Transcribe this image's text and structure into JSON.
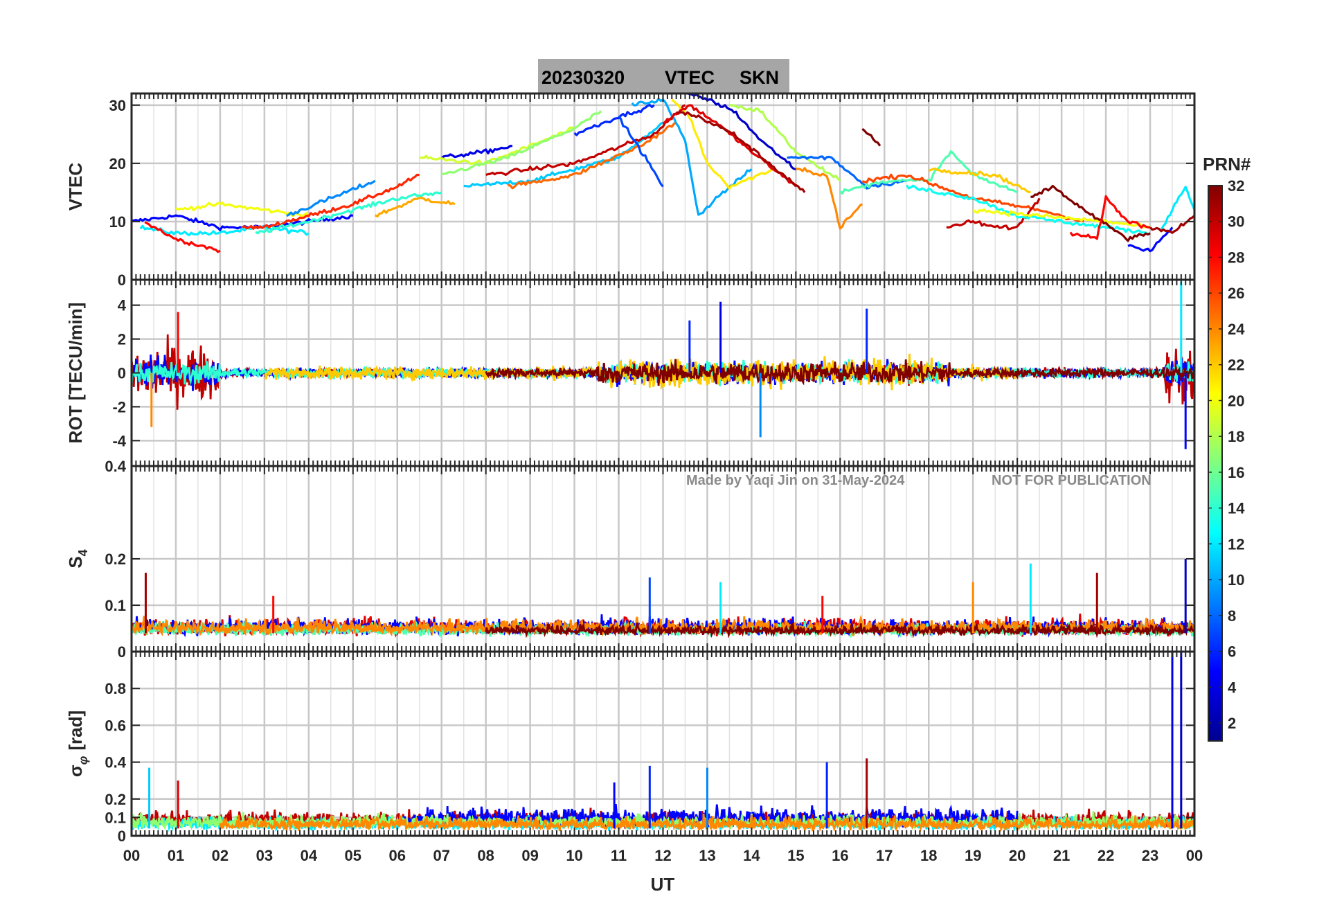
{
  "chart_data": {
    "type": "line",
    "title": "20230320    VTEC  SKN",
    "title_parts": {
      "date": "20230320",
      "quantity": "VTEC",
      "station": "SKN"
    },
    "xlabel": "UT",
    "x_ticks": [
      "00",
      "01",
      "02",
      "03",
      "04",
      "05",
      "06",
      "07",
      "08",
      "09",
      "10",
      "11",
      "12",
      "13",
      "14",
      "15",
      "16",
      "17",
      "18",
      "19",
      "20",
      "21",
      "22",
      "23",
      "00"
    ],
    "xlim_hours": [
      0,
      24
    ],
    "colorbar": {
      "label": "PRN#",
      "range": [
        1,
        32
      ],
      "ticks": [
        "2",
        "4",
        "6",
        "8",
        "10",
        "12",
        "14",
        "16",
        "18",
        "20",
        "22",
        "24",
        "26",
        "28",
        "30",
        "32"
      ],
      "colormap": "jet",
      "stops": [
        "#00008f",
        "#0000ff",
        "#0080ff",
        "#00ffff",
        "#80ff80",
        "#ffff00",
        "#ff8000",
        "#ff0000",
        "#800000"
      ]
    },
    "watermark": {
      "made_by": "Made by Yaqi Jin on 31-May-2024",
      "notice": "NOT FOR PUBLICATION"
    },
    "panels": [
      {
        "id": "vtec",
        "ylabel": "VTEC",
        "ylim": [
          0,
          32
        ],
        "yticks": [
          "0",
          "10",
          "20",
          "30"
        ],
        "ytick_values": [
          0,
          10,
          20,
          30
        ],
        "series": [
          {
            "prn": 5,
            "x": [
              0,
              1,
              2,
              3,
              4,
              5
            ],
            "y": [
              10,
              11,
              9,
              9,
              10,
              11
            ]
          },
          {
            "prn": 12,
            "x": [
              0.2,
              1,
              2,
              3,
              4
            ],
            "y": [
              9,
              8,
              8,
              9,
              8
            ]
          },
          {
            "prn": 28,
            "x": [
              0.3,
              1,
              1.5,
              2
            ],
            "y": [
              10,
              7,
              6,
              5
            ]
          },
          {
            "prn": 20,
            "x": [
              1,
              2,
              3,
              4
            ],
            "y": [
              12,
              13,
              12,
              11
            ]
          },
          {
            "prn": 27,
            "x": [
              2.5,
              3,
              4,
              5,
              6,
              6.5
            ],
            "y": [
              9,
              9,
              11,
              13,
              16,
              18
            ]
          },
          {
            "prn": 14,
            "x": [
              2.8,
              4,
              5,
              6,
              7
            ],
            "y": [
              8,
              10,
              12,
              14,
              15
            ]
          },
          {
            "prn": 9,
            "x": [
              3.5,
              4.5,
              5.5
            ],
            "y": [
              11,
              14,
              17
            ]
          },
          {
            "prn": 23,
            "x": [
              5.5,
              6.5,
              7.3
            ],
            "y": [
              11,
              14,
              13
            ]
          },
          {
            "prn": 4,
            "x": [
              7,
              8,
              8.6
            ],
            "y": [
              21,
              22,
              23
            ]
          },
          {
            "prn": 19,
            "x": [
              6.5,
              8,
              9,
              10
            ],
            "y": [
              21,
              20,
              23,
              26
            ]
          },
          {
            "prn": 17,
            "x": [
              7,
              8.5,
              10,
              10.6
            ],
            "y": [
              18,
              21,
              26,
              29
            ]
          },
          {
            "prn": 11,
            "x": [
              7.5,
              9,
              11,
              12
            ],
            "y": [
              16,
              17,
              21,
              27
            ]
          },
          {
            "prn": 25,
            "x": [
              8.5,
              10,
              11.5,
              12.3
            ],
            "y": [
              16,
              18,
              23,
              27
            ]
          },
          {
            "prn": 30,
            "x": [
              8,
              10,
              11.8,
              12.5
            ],
            "y": [
              18,
              20,
              25,
              30
            ]
          },
          {
            "prn": 6,
            "x": [
              10,
              11,
              11.8
            ],
            "y": [
              25,
              28,
              30
            ]
          },
          {
            "prn": 7,
            "x": [
              11,
              11.6,
              12
            ],
            "y": [
              28,
              21,
              16
            ]
          },
          {
            "prn": 10,
            "x": [
              11.3,
              12,
              12.5,
              12.8,
              13.2,
              14
            ],
            "y": [
              30,
              31,
              24,
              11,
              14,
              19
            ]
          },
          {
            "prn": 21,
            "x": [
              12.2,
              12.6,
              13,
              13.5,
              14.5
            ],
            "y": [
              31,
              28,
              20,
              16,
              19
            ]
          },
          {
            "prn": 29,
            "x": [
              12,
              12.6,
              13.2,
              14,
              15
            ],
            "y": [
              27,
              30,
              27,
              22,
              16
            ]
          },
          {
            "prn": 31,
            "x": [
              12.3,
              12.8,
              13.6,
              14.4,
              15.2
            ],
            "y": [
              29,
              28,
              25,
              20,
              15
            ]
          },
          {
            "prn": 3,
            "x": [
              12.5,
              13,
              13.6,
              14.2,
              15
            ],
            "y": [
              32,
              31,
              29,
              24,
              19
            ]
          },
          {
            "prn": 18,
            "x": [
              13.5,
              14.2,
              15,
              16
            ],
            "y": [
              30,
              29,
              22,
              17
            ]
          },
          {
            "prn": 24,
            "x": [
              15,
              15.7,
              16,
              16.5
            ],
            "y": [
              19,
              18,
              9,
              13
            ]
          },
          {
            "prn": 8,
            "x": [
              14.8,
              15.8,
              16.6,
              17.5
            ],
            "y": [
              21,
              21,
              16,
              17
            ]
          },
          {
            "prn": 15,
            "x": [
              16,
              17,
              18,
              18.5,
              19,
              20
            ],
            "y": [
              15,
              17,
              17,
              22,
              18,
              15
            ]
          },
          {
            "prn": 26,
            "x": [
              16.5,
              17.5,
              19,
              20.5,
              21.5
            ],
            "y": [
              17,
              18,
              14,
              12,
              10
            ]
          },
          {
            "prn": 32,
            "x": [
              16.5,
              16.9
            ],
            "y": [
              26,
              23
            ]
          },
          {
            "prn": 30,
            "x": [
              18.4,
              19,
              19.5,
              20,
              20.5
            ],
            "y": [
              9,
              10,
              9,
              9,
              14
            ]
          },
          {
            "prn": 22,
            "x": [
              18,
              19.5,
              20.3
            ],
            "y": [
              19,
              18,
              15
            ]
          },
          {
            "prn": 13,
            "x": [
              17.5,
              19,
              20,
              21,
              22,
              23
            ],
            "y": [
              16,
              14,
              11,
              10,
              9,
              8
            ]
          },
          {
            "prn": 20,
            "x": [
              19,
              20.5,
              22,
              23
            ],
            "y": [
              12,
              11,
              10,
              9
            ]
          },
          {
            "prn": 32,
            "x": [
              20.3,
              20.8,
              21.5,
              22.5,
              23
            ],
            "y": [
              14,
              16,
              12,
              7,
              8
            ]
          },
          {
            "prn": 28,
            "x": [
              21.2,
              21.8,
              22,
              22.5,
              23
            ],
            "y": [
              8,
              7,
              14,
              10,
              9
            ]
          },
          {
            "prn": 5,
            "x": [
              22.5,
              23,
              23.5
            ],
            "y": [
              6,
              5,
              9
            ]
          },
          {
            "prn": 12,
            "x": [
              23.2,
              23.8,
              24
            ],
            "y": [
              8,
              16,
              12
            ]
          },
          {
            "prn": 31,
            "x": [
              23,
              23.5,
              24
            ],
            "y": [
              9,
              8,
              11
            ]
          }
        ]
      },
      {
        "id": "rot",
        "ylabel": "ROT [TECU/min]",
        "ylim": [
          -5.5,
          5.5
        ],
        "yticks": [
          "-4",
          "-2",
          "0",
          "2",
          "4"
        ],
        "ytick_values": [
          -4,
          -2,
          0,
          2,
          4
        ],
        "series": [
          {
            "prn": 30,
            "x": [
              0,
              24
            ],
            "baseline": 0,
            "noise_amp": [
              1.6,
              0.5
            ],
            "segments": "full"
          },
          {
            "prn": 5,
            "x": [
              0,
              24
            ],
            "baseline": 0,
            "noise_amp": [
              0.8,
              0.6
            ],
            "segments": "full"
          },
          {
            "prn": 14,
            "x": [
              0,
              24
            ],
            "baseline": 0,
            "noise_amp": [
              0.6,
              0.6
            ],
            "segments": "full"
          },
          {
            "prn": 22,
            "x": [
              3,
              20
            ],
            "baseline": 0,
            "noise_amp": [
              0.3,
              0.8
            ],
            "segments": "full"
          },
          {
            "prn": 32,
            "x": [
              8,
              24
            ],
            "baseline": 0,
            "noise_amp": [
              0.3,
              0.6
            ],
            "segments": "full"
          }
        ],
        "notable_spikes": [
          {
            "x": 1.05,
            "y": 3.6,
            "prn": 28
          },
          {
            "x": 0.45,
            "y": -3.2,
            "prn": 24
          },
          {
            "x": 12.6,
            "y": 3.1,
            "prn": 6
          },
          {
            "x": 13.3,
            "y": 4.2,
            "prn": 4
          },
          {
            "x": 14.2,
            "y": -3.8,
            "prn": 9
          },
          {
            "x": 16.6,
            "y": 3.8,
            "prn": 6
          },
          {
            "x": 23.7,
            "y": 5.4,
            "prn": 12
          },
          {
            "x": 23.8,
            "y": -4.5,
            "prn": 5
          }
        ]
      },
      {
        "id": "s4",
        "ylabel": "S",
        "ylabel_sub": "4",
        "ylim": [
          0,
          0.4
        ],
        "yticks": [
          "0",
          "0.1",
          "0.2",
          "0.4"
        ],
        "ytick_values": [
          0,
          0.1,
          0.2,
          0.4
        ],
        "series": [
          {
            "prn": 29,
            "x": [
              0,
              24
            ],
            "baseline": 0.05,
            "noise_amp": 0.02
          },
          {
            "prn": 5,
            "x": [
              0,
              24
            ],
            "baseline": 0.05,
            "noise_amp": 0.02
          },
          {
            "prn": 15,
            "x": [
              0,
              24
            ],
            "baseline": 0.045,
            "noise_amp": 0.015
          },
          {
            "prn": 24,
            "x": [
              0,
              24
            ],
            "baseline": 0.05,
            "noise_amp": 0.018
          },
          {
            "prn": 32,
            "x": [
              8,
              24
            ],
            "baseline": 0.045,
            "noise_amp": 0.012
          }
        ],
        "notable_spikes": [
          {
            "x": 0.32,
            "y": 0.17,
            "prn": 31
          },
          {
            "x": 3.2,
            "y": 0.12,
            "prn": 28
          },
          {
            "x": 11.7,
            "y": 0.16,
            "prn": 7
          },
          {
            "x": 13.3,
            "y": 0.15,
            "prn": 12
          },
          {
            "x": 15.6,
            "y": 0.12,
            "prn": 28
          },
          {
            "x": 19,
            "y": 0.15,
            "prn": 24
          },
          {
            "x": 20.3,
            "y": 0.19,
            "prn": 12
          },
          {
            "x": 21.8,
            "y": 0.17,
            "prn": 31
          },
          {
            "x": 23.8,
            "y": 0.2,
            "prn": 3
          }
        ]
      },
      {
        "id": "sigma_phi",
        "ylabel": "σ",
        "ylabel_sub": "φ",
        "ylabel_suffix": "[rad]",
        "ylim": [
          0,
          1
        ],
        "yticks": [
          "0",
          "0.1",
          "0.2",
          "0.4",
          "0.6",
          "0.8"
        ],
        "ytick_values": [
          0,
          0.1,
          0.2,
          0.4,
          0.6,
          0.8
        ],
        "series": [
          {
            "prn": 30,
            "x": [
              0,
              24
            ],
            "baseline": 0.08,
            "noise_amp": 0.05
          },
          {
            "prn": 12,
            "x": [
              0,
              24
            ],
            "baseline": 0.06,
            "noise_amp": 0.04
          },
          {
            "prn": 5,
            "x": [
              6,
              20
            ],
            "baseline": 0.09,
            "noise_amp": 0.06
          },
          {
            "prn": 17,
            "x": [
              0,
              24
            ],
            "baseline": 0.07,
            "noise_amp": 0.04
          },
          {
            "prn": 24,
            "x": [
              2,
              24
            ],
            "baseline": 0.06,
            "noise_amp": 0.04
          }
        ],
        "notable_spikes": [
          {
            "x": 0.4,
            "y": 0.37,
            "prn": 11
          },
          {
            "x": 1.05,
            "y": 0.3,
            "prn": 29
          },
          {
            "x": 10.9,
            "y": 0.29,
            "prn": 5
          },
          {
            "x": 11.7,
            "y": 0.38,
            "prn": 6
          },
          {
            "x": 13.0,
            "y": 0.37,
            "prn": 9
          },
          {
            "x": 15.7,
            "y": 0.4,
            "prn": 6
          },
          {
            "x": 16.6,
            "y": 0.42,
            "prn": 31
          },
          {
            "x": 23.5,
            "y": 1.0,
            "prn": 4
          },
          {
            "x": 23.7,
            "y": 1.0,
            "prn": 3
          }
        ]
      }
    ]
  }
}
